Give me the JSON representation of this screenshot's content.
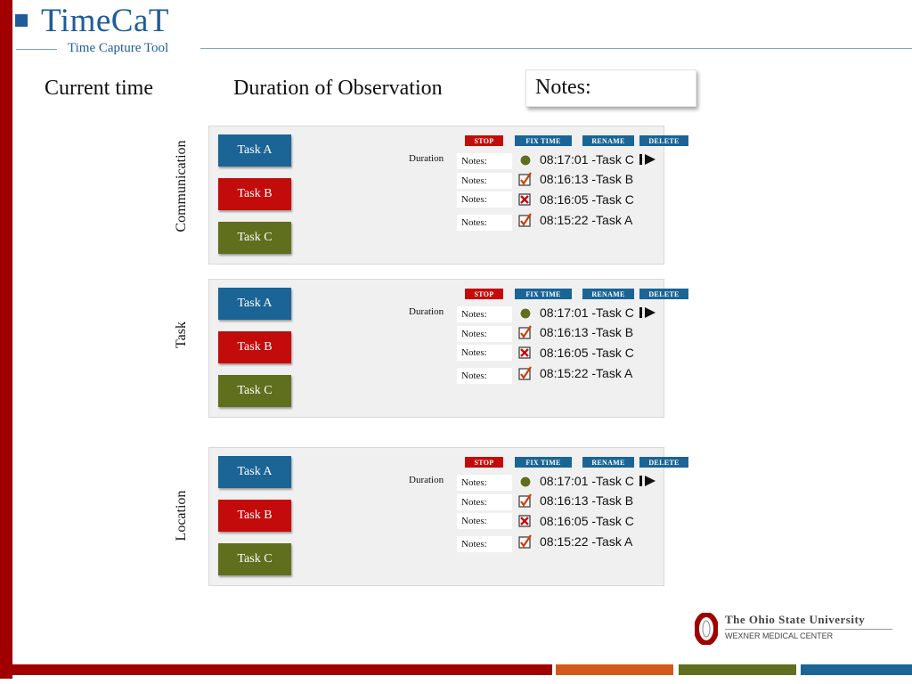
{
  "brand": {
    "title": "TimeCaT",
    "subtitle": "Time Capture Tool"
  },
  "headings": {
    "current_time": "Current time",
    "duration": "Duration of Observation",
    "notes": "Notes:"
  },
  "panels": [
    {
      "side_label": "Communication"
    },
    {
      "side_label": "Task"
    },
    {
      "side_label": "Location"
    }
  ],
  "buttons": {
    "task_a": "Task A",
    "task_b": "Task B",
    "task_c": "Task C",
    "stop": "STOP",
    "fix_time": "FIX TIME",
    "rename": "RENAME",
    "delete": "DELETE"
  },
  "labels": {
    "duration": "Duration",
    "notes": "Notes:"
  },
  "entries": [
    {
      "text": "08:17:01 -Task C",
      "icon": "active-dot-icon"
    },
    {
      "text": "08:16:13 -Task B",
      "icon": "checked-icon"
    },
    {
      "text": "08:16:05 -Task C",
      "icon": "cross-icon"
    },
    {
      "text": "08:15:22 -Task A",
      "icon": "checked-icon"
    }
  ],
  "colors": {
    "task_a": "#1a6496",
    "task_b": "#c40b0b",
    "task_c": "#5f6f1e",
    "brand": "#1f5c99",
    "accent_red": "#a00000"
  },
  "footer": {
    "org": "The Ohio State University",
    "sub": "WEXNER MEDICAL CENTER"
  }
}
